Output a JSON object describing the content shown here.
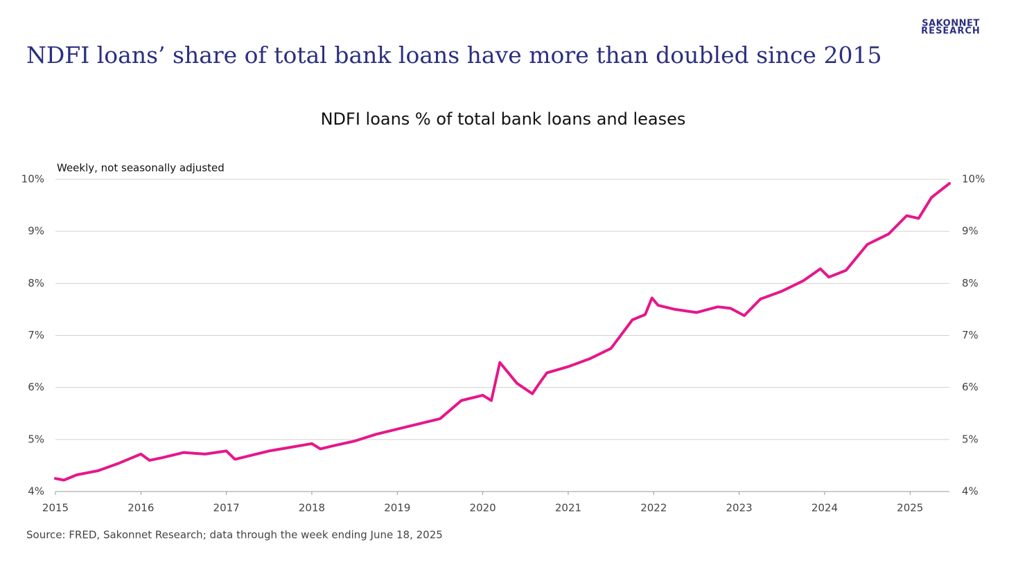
{
  "header": {
    "title": "NDFI loans’ share of total bank loans have more than doubled since 2015",
    "logo": [
      "SAKONNET",
      "RESEARCH"
    ]
  },
  "chart_data": {
    "type": "line",
    "title": "NDFI loans % of total bank loans and leases",
    "annotation": "Weekly, not seasonally adjusted",
    "source": "Source: FRED, Sakonnet Research; data through the week ending June 18, 2025",
    "color": "#e5178b",
    "x": [
      2015.0,
      2015.1,
      2015.25,
      2015.5,
      2015.75,
      2016.0,
      2016.1,
      2016.25,
      2016.5,
      2016.75,
      2017.0,
      2017.1,
      2017.25,
      2017.5,
      2017.75,
      2018.0,
      2018.1,
      2018.25,
      2018.5,
      2018.75,
      2019.0,
      2019.25,
      2019.5,
      2019.75,
      2020.0,
      2020.1,
      2020.2,
      2020.4,
      2020.58,
      2020.65,
      2020.75,
      2021.0,
      2021.25,
      2021.5,
      2021.75,
      2021.9,
      2021.98,
      2022.05,
      2022.25,
      2022.5,
      2022.75,
      2022.9,
      2023.06,
      2023.25,
      2023.5,
      2023.75,
      2023.95,
      2024.05,
      2024.25,
      2024.5,
      2024.75,
      2024.96,
      2025.1,
      2025.25,
      2025.46
    ],
    "values": [
      4.25,
      4.22,
      4.32,
      4.4,
      4.55,
      4.72,
      4.6,
      4.65,
      4.75,
      4.72,
      4.78,
      4.62,
      4.68,
      4.78,
      4.85,
      4.92,
      4.82,
      4.88,
      4.97,
      5.1,
      5.2,
      5.3,
      5.4,
      5.75,
      5.85,
      5.75,
      6.48,
      6.08,
      5.88,
      6.05,
      6.28,
      6.4,
      6.55,
      6.75,
      7.3,
      7.4,
      7.72,
      7.58,
      7.5,
      7.44,
      7.55,
      7.52,
      7.38,
      7.7,
      7.85,
      8.05,
      8.28,
      8.12,
      8.25,
      8.75,
      8.95,
      9.3,
      9.25,
      9.65,
      9.92
    ],
    "xlim": [
      2015,
      2025.46
    ],
    "xticks": [
      2015,
      2016,
      2017,
      2018,
      2019,
      2020,
      2021,
      2022,
      2023,
      2024,
      2025
    ],
    "ylim": [
      4,
      10
    ],
    "yticks": [
      {
        "value": 4,
        "label": "4%"
      },
      {
        "value": 5,
        "label": "5%"
      },
      {
        "value": 6,
        "label": "6%"
      },
      {
        "value": 7,
        "label": "7%"
      },
      {
        "value": 8,
        "label": "8%"
      },
      {
        "value": 9,
        "label": "9%"
      },
      {
        "value": 10,
        "label": "10%"
      }
    ],
    "grid": true
  }
}
